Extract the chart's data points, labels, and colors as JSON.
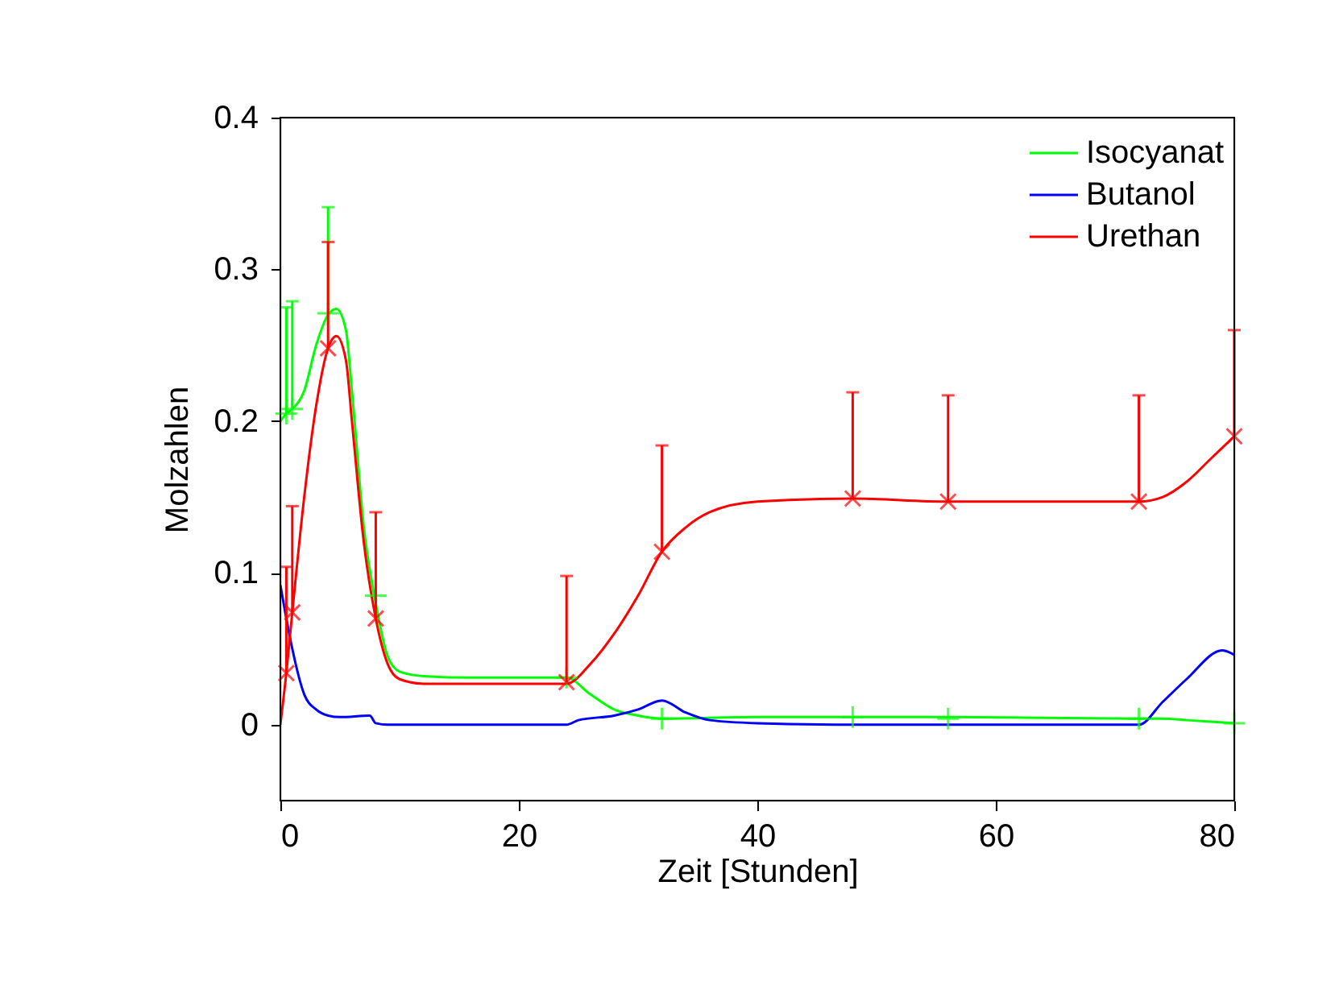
{
  "chart_data": {
    "type": "line",
    "xlabel": "Zeit [Stunden]",
    "ylabel": "Molzahlen",
    "xlim": [
      0,
      80
    ],
    "ylim": [
      -0.05,
      0.4
    ],
    "xticks": [
      0,
      20,
      40,
      60,
      80
    ],
    "yticks": [
      0,
      0.1,
      0.2,
      0.3,
      0.4
    ],
    "grid": false,
    "legend": "top right",
    "line_style": "solid",
    "series": [
      {
        "name": "Isocyanat",
        "color": "#00ff00",
        "x": [
          0,
          0.5,
          1,
          2,
          3,
          4,
          4.7,
          5.5,
          6,
          7,
          8,
          9,
          10,
          12,
          16,
          24,
          26,
          28,
          30,
          32,
          40,
          48,
          56,
          72,
          74,
          76,
          80
        ],
        "values": [
          0.2,
          0.205,
          0.208,
          0.22,
          0.25,
          0.27,
          0.274,
          0.26,
          0.22,
          0.13,
          0.08,
          0.045,
          0.035,
          0.032,
          0.031,
          0.031,
          0.02,
          0.01,
          0.006,
          0.004,
          0.005,
          0.005,
          0.005,
          0.004,
          0.004,
          0.003,
          0.001
        ]
      },
      {
        "name": "Butanol",
        "color": "#0000ff",
        "x": [
          0,
          0.5,
          1,
          2,
          3,
          4,
          5,
          7.5,
          8,
          9,
          24,
          25,
          28,
          30,
          32,
          34,
          36,
          40,
          48,
          72,
          74,
          76,
          79,
          80
        ],
        "values": [
          0.092,
          0.07,
          0.05,
          0.02,
          0.01,
          0.006,
          0.005,
          0.006,
          0.001,
          0,
          0,
          0.003,
          0.006,
          0.01,
          0.016,
          0.008,
          0.003,
          0.001,
          0,
          0,
          0.015,
          0.03,
          0.049,
          0.046
        ]
      },
      {
        "name": "Urethan",
        "color": "#ff0000",
        "x": [
          0,
          0.5,
          1,
          2,
          3,
          4,
          4.7,
          5.5,
          6,
          7,
          8,
          9,
          10,
          12,
          24,
          26,
          28,
          30,
          32,
          34,
          36,
          40,
          48,
          56,
          72,
          74,
          76,
          78,
          80
        ],
        "values": [
          0,
          0.034,
          0.074,
          0.15,
          0.21,
          0.248,
          0.256,
          0.24,
          0.2,
          0.12,
          0.07,
          0.04,
          0.03,
          0.027,
          0.027,
          0.04,
          0.06,
          0.085,
          0.114,
          0.13,
          0.14,
          0.147,
          0.149,
          0.147,
          0.147,
          0.15,
          0.16,
          0.175,
          0.19
        ]
      },
      {
        "color": "#00ff00",
        "type": "scatter",
        "marker": "cross",
        "x": [
          0.5,
          1,
          4,
          8,
          24,
          32,
          48,
          56,
          72,
          80
        ],
        "values": [
          0.205,
          0.208,
          0.271,
          0.085,
          0.031,
          0.004,
          0.005,
          0.004,
          0.004,
          0.001
        ],
        "errors": [
          [
            0.205,
            0.275
          ],
          [
            0.208,
            0.279
          ],
          [
            0.271,
            0.341
          ],
          null,
          null,
          null,
          null,
          null,
          null,
          null
        ]
      },
      {
        "color": "#ff0000",
        "type": "scatter",
        "marker": "cross",
        "x": [
          0.5,
          1,
          4,
          8,
          24,
          32,
          48,
          56,
          72,
          80
        ],
        "values": [
          0.034,
          0.074,
          0.248,
          0.07,
          0.028,
          0.114,
          0.149,
          0.147,
          0.147,
          0.19
        ],
        "errors": [
          [
            0.034,
            0.104
          ],
          [
            0.074,
            0.144
          ],
          [
            0.248,
            0.318
          ],
          [
            0.07,
            0.14
          ],
          [
            0.028,
            0.098
          ],
          [
            0.114,
            0.184
          ],
          [
            0.149,
            0.219
          ],
          [
            0.147,
            0.217
          ],
          [
            0.147,
            0.217
          ],
          [
            0.19,
            0.26
          ]
        ]
      }
    ]
  }
}
